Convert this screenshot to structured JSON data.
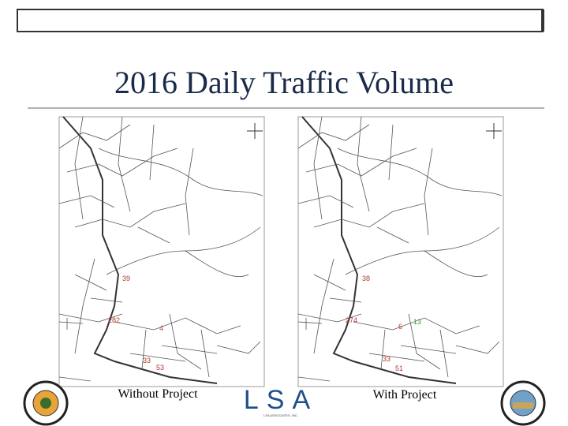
{
  "header": {
    "title": "2016 Daily Traffic Volume"
  },
  "maps": [
    {
      "caption": "Without Project",
      "labels": [
        39,
        282,
        4,
        33,
        53
      ]
    },
    {
      "caption": "With Project",
      "labels": [
        38,
        274,
        6,
        13,
        33,
        51
      ]
    }
  ],
  "logo": {
    "name": "LSA",
    "subtitle": "LSA ASSOCIATES, INC."
  }
}
